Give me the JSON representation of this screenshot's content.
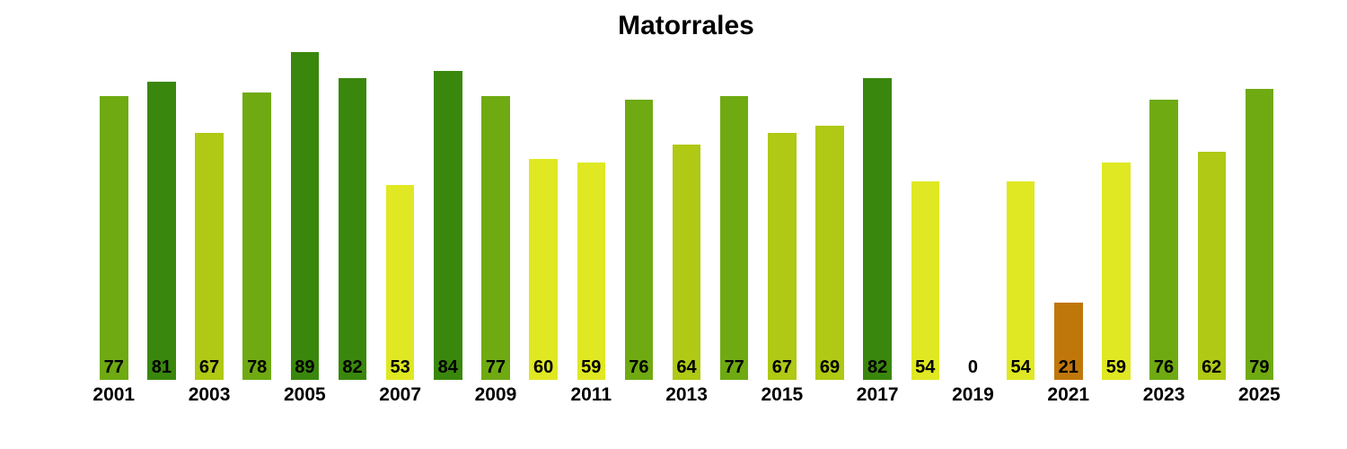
{
  "chart_data": {
    "type": "bar",
    "title": "Matorrales",
    "x": [
      2001,
      2002,
      2003,
      2004,
      2005,
      2006,
      2007,
      2008,
      2009,
      2010,
      2011,
      2012,
      2013,
      2014,
      2015,
      2016,
      2017,
      2018,
      2019,
      2020,
      2021,
      2022,
      2023,
      2024,
      2025
    ],
    "values": [
      77,
      81,
      67,
      78,
      89,
      82,
      53,
      84,
      77,
      60,
      59,
      76,
      64,
      77,
      67,
      69,
      82,
      54,
      0,
      54,
      21,
      59,
      76,
      62,
      79
    ],
    "bar_color_keys": [
      "medium_green",
      "dark_green",
      "yellow_green",
      "medium_green",
      "dark_green",
      "dark_green",
      "yellow",
      "dark_green",
      "medium_green",
      "yellow",
      "yellow",
      "medium_green",
      "yellow_green",
      "medium_green",
      "yellow_green",
      "yellow_green",
      "dark_green",
      "yellow",
      "none",
      "yellow",
      "orange",
      "yellow",
      "medium_green",
      "yellow_green",
      "medium_green"
    ],
    "palette": {
      "dark_green": "#3A870D",
      "medium_green": "#6FAA12",
      "yellow_green": "#AFC914",
      "yellow": "#DFE822",
      "orange": "#C0770A",
      "none": "transparent"
    },
    "x_tick_labels": [
      "2001",
      "2003",
      "2005",
      "2007",
      "2009",
      "2011",
      "2013",
      "2015",
      "2017",
      "2019",
      "2021",
      "2023",
      "2025"
    ],
    "value_labels": "black numbers at bar base",
    "xlabel": "",
    "ylabel": "",
    "ylim": [
      0,
      100
    ],
    "grid": false,
    "legend_position": "none",
    "background_color": "#FFFFFF",
    "text_color": "#000000"
  }
}
